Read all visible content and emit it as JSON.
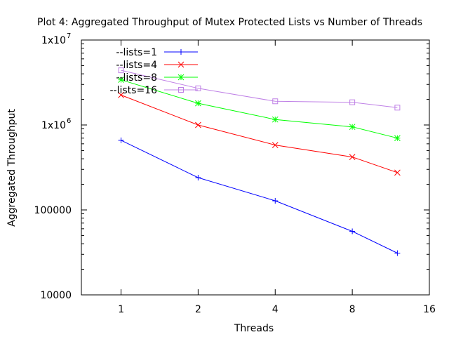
{
  "chart_data": {
    "type": "line",
    "title": "Plot 4: Aggregated Throughput of Mutex Protected Lists vs Number of Threads",
    "xlabel": "Threads",
    "ylabel": "Aggregated Throughput",
    "x_scale": "log2",
    "y_scale": "log10",
    "xlim": [
      0.7,
      16
    ],
    "ylim": [
      10000,
      10000000
    ],
    "x_ticks": [
      1,
      2,
      4,
      8,
      16
    ],
    "x_tick_labels": [
      "1",
      "2",
      "4",
      "8",
      "16"
    ],
    "y_ticks": [
      10000,
      100000,
      1000000,
      10000000
    ],
    "y_tick_labels": [
      "10000",
      "100000",
      "1x10",
      "1x10"
    ],
    "y_tick_superscripts": [
      "",
      "",
      "6",
      "7"
    ],
    "legend_position": "top-left",
    "grid": false,
    "x": [
      1,
      2,
      4,
      8,
      12
    ],
    "series": [
      {
        "name": "--lists=1",
        "color": "#0000ff",
        "marker": "plus",
        "values": [
          660000,
          240000,
          128000,
          56000,
          31000
        ]
      },
      {
        "name": "--lists=4",
        "color": "#ff0000",
        "marker": "cross",
        "values": [
          2250000,
          1000000,
          580000,
          420000,
          275000
        ]
      },
      {
        "name": "--lists=8",
        "color": "#00ff00",
        "marker": "star",
        "values": [
          3400000,
          1800000,
          1160000,
          950000,
          700000
        ]
      },
      {
        "name": "--lists=16",
        "color": "#bf80e6",
        "marker": "square",
        "values": [
          4400000,
          2700000,
          1900000,
          1850000,
          1600000
        ]
      }
    ]
  }
}
